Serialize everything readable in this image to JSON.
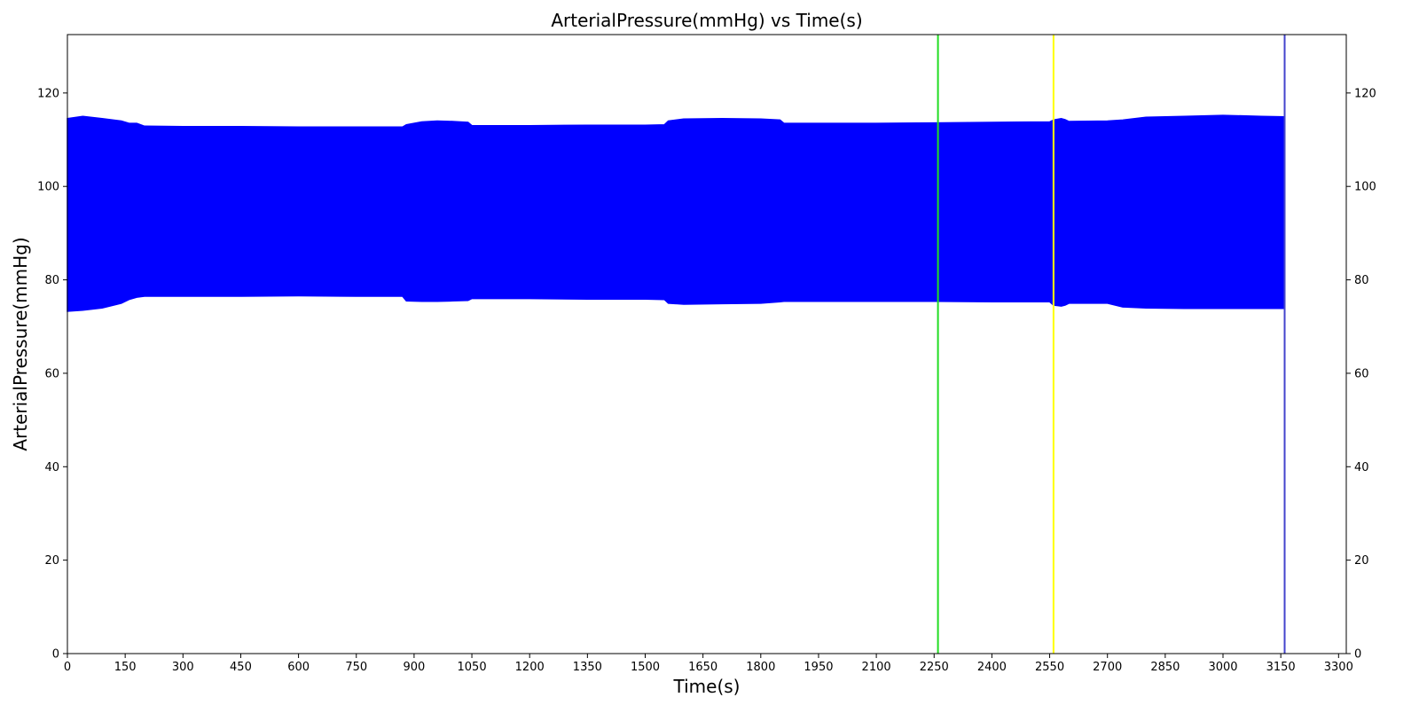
{
  "chart_data": {
    "type": "line",
    "title": "ArterialPressure(mmHg) vs Time(s)",
    "xlabel": "Time(s)",
    "ylabel": "ArterialPressure(mmHg)",
    "xlim": [
      0,
      3320
    ],
    "ylim": [
      0,
      132.5
    ],
    "x_ticks": [
      0,
      150,
      300,
      450,
      600,
      750,
      900,
      1050,
      1200,
      1350,
      1500,
      1650,
      1800,
      1950,
      2100,
      2250,
      2400,
      2550,
      2700,
      2850,
      3000,
      3150,
      3300
    ],
    "y_ticks": [
      0,
      20,
      40,
      60,
      80,
      100,
      120
    ],
    "grid": false,
    "right_axis_mirrors_left": true,
    "series": [
      {
        "color": "#0000ff",
        "representation": "oscillating pressure waveform; envelope of systolic maxima and diastolic minima",
        "x": [
          0,
          40,
          90,
          140,
          160,
          180,
          200,
          300,
          450,
          600,
          750,
          870,
          880,
          920,
          960,
          1000,
          1040,
          1050,
          1200,
          1350,
          1500,
          1550,
          1560,
          1600,
          1700,
          1800,
          1850,
          1860,
          1950,
          2100,
          2250,
          2400,
          2550,
          2560,
          2580,
          2590,
          2600,
          2700,
          2740,
          2800,
          2900,
          3000,
          3100,
          3160
        ],
        "max": [
          114.5,
          115.0,
          114.5,
          114.0,
          113.5,
          113.5,
          112.9,
          112.8,
          112.8,
          112.7,
          112.7,
          112.7,
          113.2,
          113.8,
          114.0,
          113.9,
          113.7,
          113.0,
          113.0,
          113.1,
          113.1,
          113.2,
          114.0,
          114.4,
          114.5,
          114.4,
          114.2,
          113.5,
          113.5,
          113.5,
          113.6,
          113.7,
          113.8,
          114.2,
          114.5,
          114.3,
          113.9,
          114.0,
          114.2,
          114.8,
          115.0,
          115.2,
          115.0,
          114.9
        ],
        "min": [
          73.3,
          73.5,
          74.0,
          75.0,
          75.8,
          76.3,
          76.5,
          76.5,
          76.5,
          76.6,
          76.5,
          76.5,
          75.5,
          75.4,
          75.4,
          75.5,
          75.6,
          76.0,
          76.0,
          75.9,
          75.9,
          75.8,
          75.0,
          74.8,
          74.9,
          75.0,
          75.3,
          75.4,
          75.4,
          75.4,
          75.4,
          75.3,
          75.3,
          74.6,
          74.4,
          74.6,
          75.0,
          75.0,
          74.2,
          74.0,
          73.9,
          73.9,
          73.9,
          73.9
        ]
      }
    ],
    "vlines": [
      {
        "x": 2260,
        "color": "#22dd22"
      },
      {
        "x": 2560,
        "color": "#ffff00"
      },
      {
        "x": 3160,
        "color": "#4444cc"
      }
    ]
  }
}
